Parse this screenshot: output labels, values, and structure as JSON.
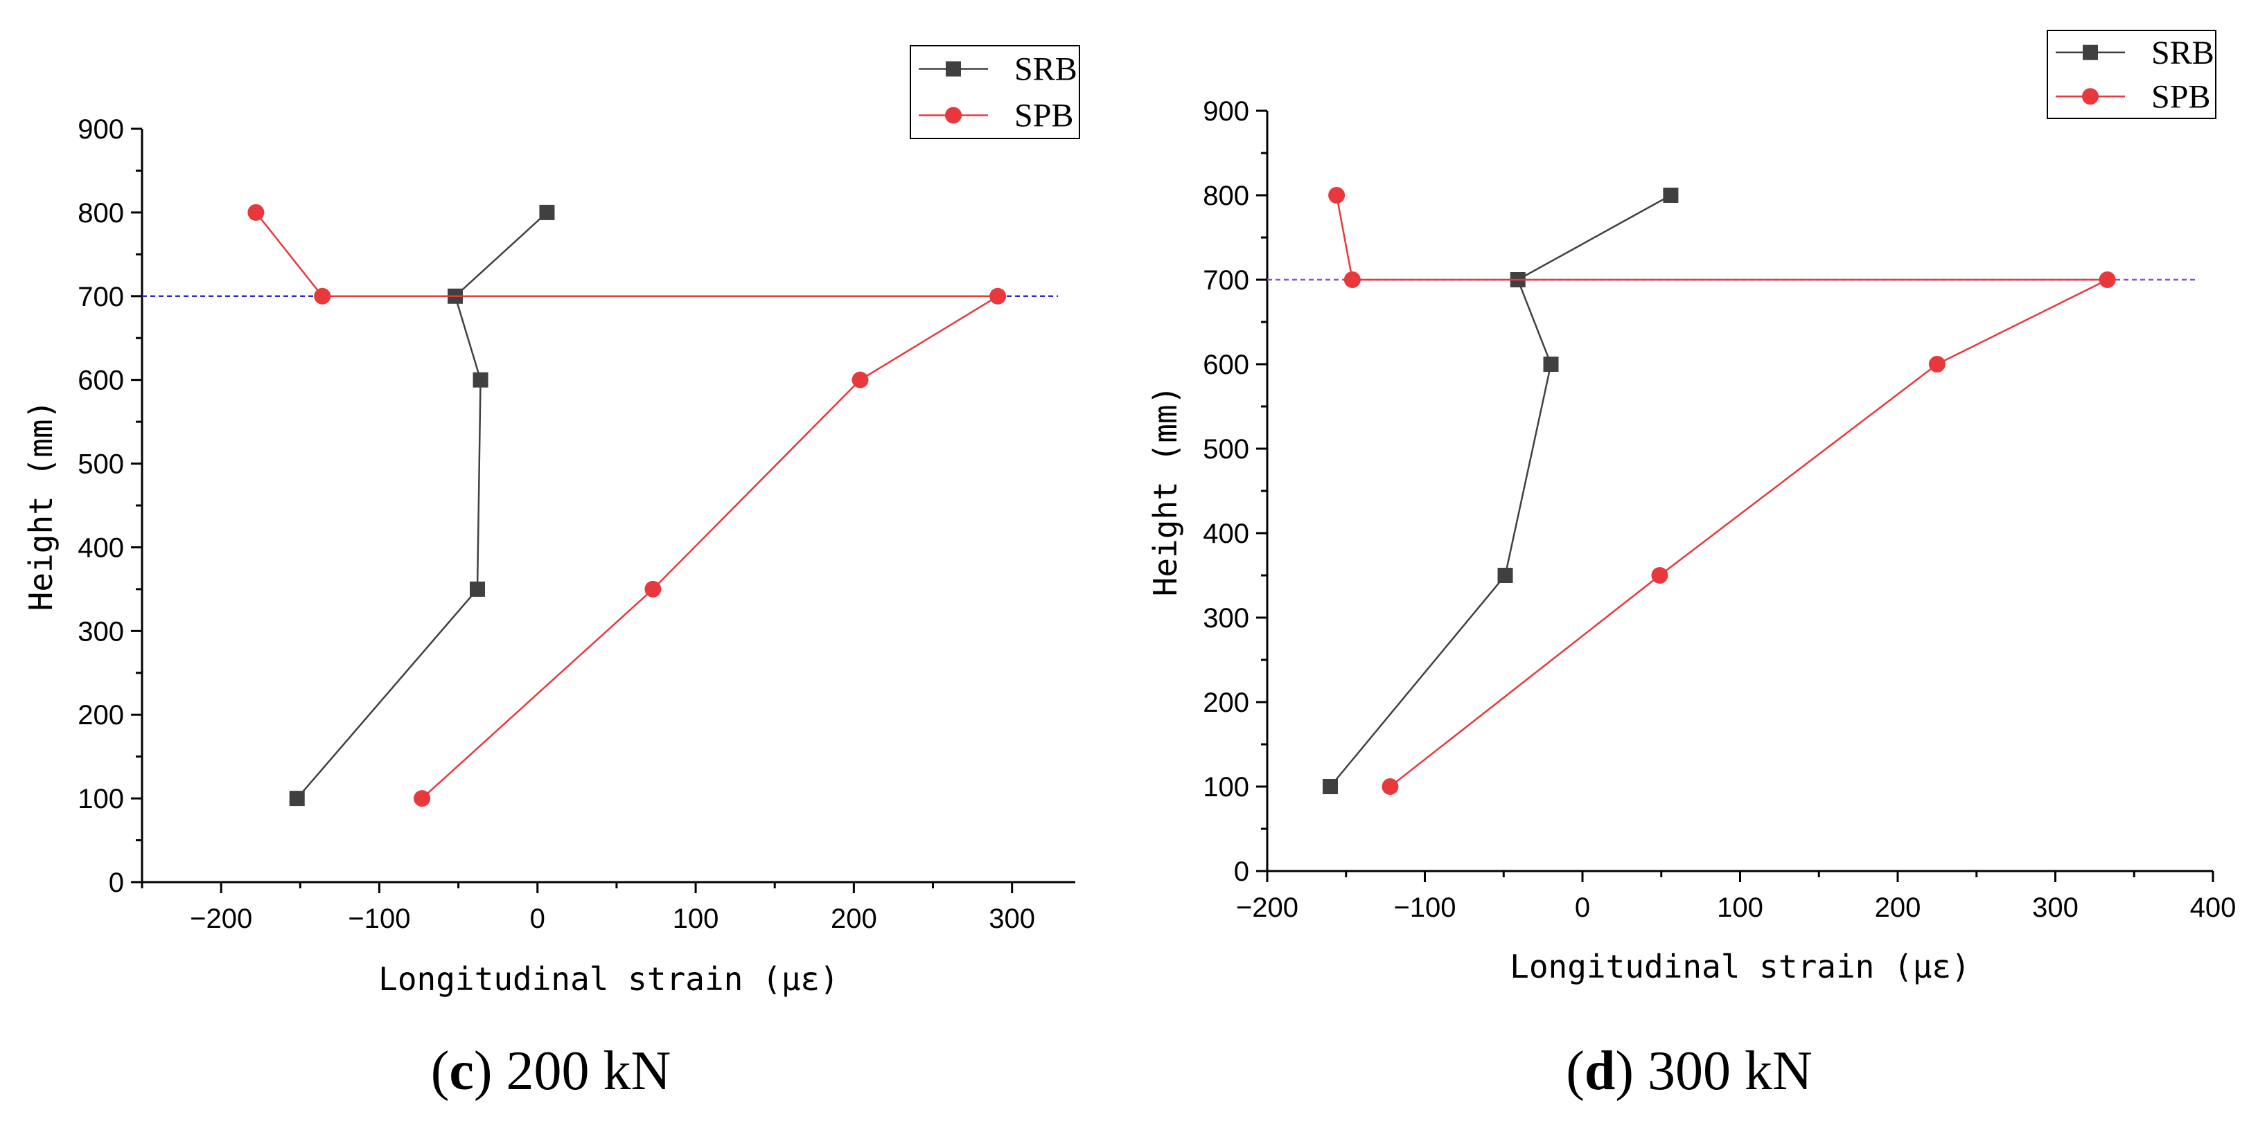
{
  "chart_data": [
    {
      "type": "line",
      "panel": "c",
      "caption_letter": "c",
      "caption_text": "200 kN",
      "xlabel": "Longitudinal strain (με)",
      "ylabel": "Height (mm)",
      "xlim": [
        -250,
        340
      ],
      "ylim": [
        0,
        900
      ],
      "xticks": [
        -200,
        -100,
        0,
        100,
        200,
        300
      ],
      "yticks": [
        0,
        100,
        200,
        300,
        400,
        500,
        600,
        700,
        800,
        900
      ],
      "reference_line_y": 700,
      "reference_line_color": "#2b2bd6",
      "legend_position": "top-right",
      "series": [
        {
          "name": "SRB",
          "marker": "square",
          "color": "#404040",
          "points": [
            [
              -152,
              100
            ],
            [
              -38,
              350
            ],
            [
              -36,
              600
            ],
            [
              -52,
              700
            ],
            [
              6,
              800
            ]
          ]
        },
        {
          "name": "SPB",
          "marker": "circle",
          "color": "#e8383b",
          "points": [
            [
              -73,
              100
            ],
            [
              73,
              350
            ],
            [
              204,
              600
            ],
            [
              291,
              700
            ],
            [
              -136,
              700
            ],
            [
              -178,
              800
            ]
          ]
        }
      ]
    },
    {
      "type": "line",
      "panel": "d",
      "caption_letter": "d",
      "caption_text": "300 kN",
      "xlabel": "Longitudinal strain (με)",
      "ylabel": "Height (mm)",
      "xlim": [
        -200,
        400
      ],
      "ylim": [
        0,
        900
      ],
      "xticks": [
        -200,
        -100,
        0,
        100,
        200,
        300,
        400
      ],
      "yticks": [
        0,
        100,
        200,
        300,
        400,
        500,
        600,
        700,
        800,
        900
      ],
      "reference_line_y": 700,
      "reference_line_color": "#8a4fd8",
      "legend_position": "top-right",
      "series": [
        {
          "name": "SRB",
          "marker": "square",
          "color": "#404040",
          "points": [
            [
              -160,
              100
            ],
            [
              -49,
              350
            ],
            [
              -20,
              600
            ],
            [
              -41,
              700
            ],
            [
              56,
              800
            ]
          ]
        },
        {
          "name": "SPB",
          "marker": "circle",
          "color": "#e8383b",
          "points": [
            [
              -122,
              100
            ],
            [
              49,
              350
            ],
            [
              225,
              600
            ],
            [
              333,
              700
            ],
            [
              -146,
              700
            ],
            [
              -156,
              800
            ]
          ]
        }
      ]
    }
  ]
}
